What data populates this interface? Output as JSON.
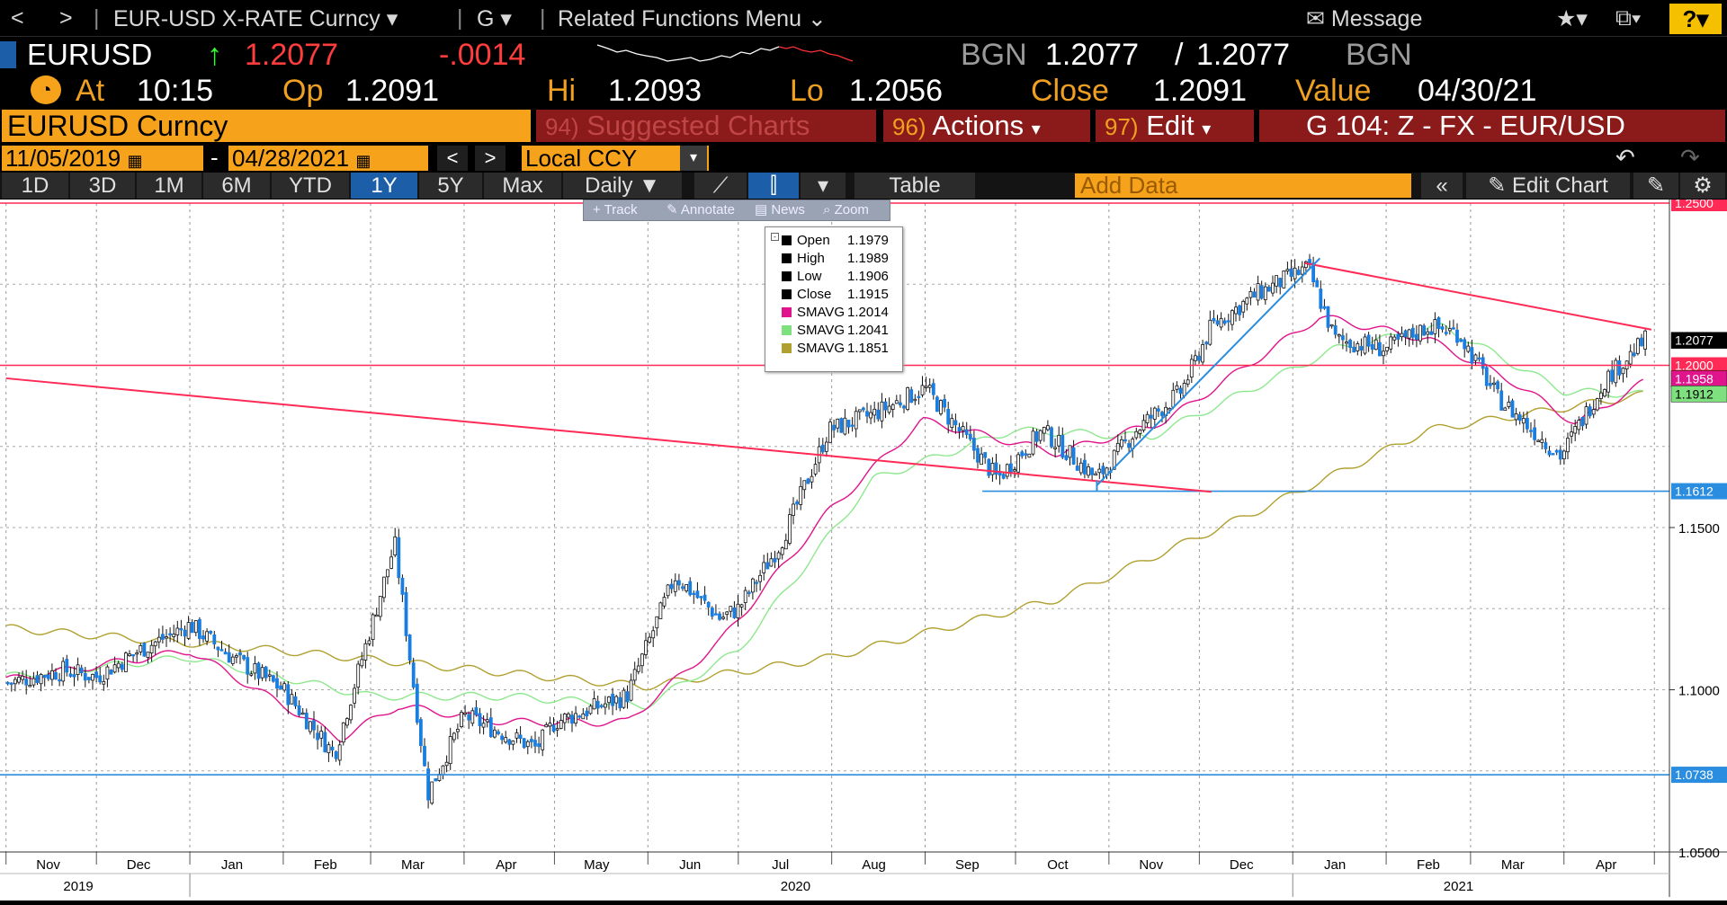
{
  "topbar": {
    "back": "<",
    "forward": ">",
    "security_menu": "EUR-USD X-RATE Curncy",
    "function_menu": "G",
    "related_menu": "Related Functions Menu",
    "message": "Message",
    "help": "?"
  },
  "quote": {
    "ticker": "EURUSD",
    "last": "1.2077",
    "change": "-.0014",
    "source_left": "BGN",
    "bid": "1.2077",
    "ask": "1.2077",
    "source_right": "BGN",
    "at_label": "At",
    "time": "10:15",
    "open_label": "Op",
    "open": "1.2091",
    "high_label": "Hi",
    "high": "1.2093",
    "low_label": "Lo",
    "low": "1.2056",
    "close_label": "Close",
    "close": "1.2091",
    "value_label": "Value",
    "value_date": "04/30/21"
  },
  "commands": {
    "security": "EURUSD Curncy",
    "suggested_num": "94)",
    "suggested": "Suggested Charts",
    "actions_num": "96)",
    "actions": "Actions",
    "edit_num": "97)",
    "edit": "Edit",
    "chart_id": "G 104: Z - FX - EUR/USD"
  },
  "dates": {
    "start": "11/05/2019",
    "dash": "-",
    "end": "04/28/2021",
    "currency": "Local CCY"
  },
  "range": {
    "buttons": [
      "1D",
      "3D",
      "1M",
      "6M",
      "YTD",
      "1Y",
      "5Y",
      "Max"
    ],
    "active": "1Y",
    "frequency": "Daily",
    "table": "Table",
    "add_data": "Add Data",
    "edit_chart": "Edit Chart"
  },
  "toolbar": {
    "track": "+ Track",
    "annotate": "Annotate",
    "news": "News",
    "zoom": "Zoom"
  },
  "legend": [
    {
      "name": "Open",
      "value": "1.1979",
      "color": "#000000"
    },
    {
      "name": "High",
      "value": "1.1989",
      "color": "#000000"
    },
    {
      "name": "Low",
      "value": "1.1906",
      "color": "#000000"
    },
    {
      "name": "Close",
      "value": "1.1915",
      "color": "#000000"
    },
    {
      "name": "SMAVG",
      "value": "1.2014",
      "color": "#e0148c"
    },
    {
      "name": "SMAVG",
      "value": "1.2041",
      "color": "#7fe07f"
    },
    {
      "name": "SMAVG",
      "value": "1.1851",
      "color": "#b0a030"
    }
  ],
  "chart_data": {
    "type": "candlestick",
    "ylim": [
      1.05,
      1.25
    ],
    "y_ticks": [
      "1.2500",
      "1.2000",
      "1.1500",
      "1.1000",
      "1.0500"
    ],
    "months": [
      "Nov",
      "Dec",
      "Jan",
      "Feb",
      "Mar",
      "Apr",
      "May",
      "Jun",
      "Jul",
      "Aug",
      "Sep",
      "Oct",
      "Nov",
      "Dec",
      "Jan",
      "Feb",
      "Mar",
      "Apr"
    ],
    "years": [
      "2019",
      "2020",
      "2021"
    ],
    "close_path": [
      [
        "2019-11",
        1.102
      ],
      [
        "2019-11-20",
        1.106
      ],
      [
        "2019-12",
        1.104
      ],
      [
        "2019-12-15",
        1.112
      ],
      [
        "2020-01",
        1.12
      ],
      [
        "2020-01-15",
        1.11
      ],
      [
        "2020-02",
        1.1
      ],
      [
        "2020-02-18",
        1.08
      ],
      [
        "2020-03-09",
        1.145
      ],
      [
        "2020-03-20",
        1.068
      ],
      [
        "2020-04",
        1.092
      ],
      [
        "2020-04-25",
        1.082
      ],
      [
        "2020-05",
        1.09
      ],
      [
        "2020-05-25",
        1.098
      ],
      [
        "2020-06-10",
        1.135
      ],
      [
        "2020-06-25",
        1.122
      ],
      [
        "2020-07",
        1.125
      ],
      [
        "2020-07-15",
        1.145
      ],
      [
        "2020-07-31",
        1.18
      ],
      [
        "2020-08-15",
        1.185
      ],
      [
        "2020-09",
        1.193
      ],
      [
        "2020-09-25",
        1.165
      ],
      [
        "2020-10-10",
        1.18
      ],
      [
        "2020-10-28",
        1.165
      ],
      [
        "2020-11-10",
        1.18
      ],
      [
        "2020-11-25",
        1.192
      ],
      [
        "2020-12-05",
        1.212
      ],
      [
        "2020-12-20",
        1.222
      ],
      [
        "2021-01-06",
        1.23
      ],
      [
        "2021-01-15",
        1.208
      ],
      [
        "2021-02-01",
        1.205
      ],
      [
        "2021-02-15",
        1.212
      ],
      [
        "2021-02-25",
        1.21
      ],
      [
        "2021-03-10",
        1.19
      ],
      [
        "2021-03-31",
        1.172
      ],
      [
        "2021-04-15",
        1.196
      ],
      [
        "2021-04-28",
        1.2077
      ]
    ],
    "sma_magenta": [
      [
        "2019-11",
        1.103
      ],
      [
        "2020-01",
        1.112
      ],
      [
        "2020-02-20",
        1.085
      ],
      [
        "2020-03-10",
        1.095
      ],
      [
        "2020-04-15",
        1.09
      ],
      [
        "2020-05-25",
        1.09
      ],
      [
        "2020-06-25",
        1.115
      ],
      [
        "2020-07-31",
        1.155
      ],
      [
        "2020-08-31",
        1.183
      ],
      [
        "2020-10-15",
        1.173
      ],
      [
        "2020-11-20",
        1.183
      ],
      [
        "2021-01-10",
        1.215
      ],
      [
        "2021-02-15",
        1.208
      ],
      [
        "2021-03-15",
        1.195
      ],
      [
        "2021-04-05",
        1.182
      ],
      [
        "2021-04-28",
        1.195
      ]
    ],
    "sma_green": [
      [
        "2019-11",
        1.104
      ],
      [
        "2020-01",
        1.11
      ],
      [
        "2020-03-01",
        1.098
      ],
      [
        "2020-04-15",
        1.098
      ],
      [
        "2020-05-31",
        1.095
      ],
      [
        "2020-07-01",
        1.112
      ],
      [
        "2020-08-15",
        1.165
      ],
      [
        "2020-09-30",
        1.18
      ],
      [
        "2020-11-15",
        1.178
      ],
      [
        "2021-01-15",
        1.205
      ],
      [
        "2021-02-20",
        1.212
      ],
      [
        "2021-04-01",
        1.192
      ],
      [
        "2021-04-28",
        1.191
      ]
    ],
    "sma_olive": [
      [
        "2019-11",
        1.119
      ],
      [
        "2020-02-01",
        1.112
      ],
      [
        "2020-05-31",
        1.101
      ],
      [
        "2020-08-01",
        1.11
      ],
      [
        "2020-10-15",
        1.128
      ],
      [
        "2020-12-20",
        1.155
      ],
      [
        "2021-02-15",
        1.18
      ],
      [
        "2021-04-28",
        1.191
      ]
    ],
    "trendlines": [
      {
        "name": "resistance-2021",
        "color": "#ff2a55",
        "points": [
          [
            "2021-01-05",
            1.2315
          ],
          [
            "2021-04-30",
            1.211
          ]
        ]
      },
      {
        "name": "descending-long",
        "color": "#ff2a55",
        "points": [
          [
            "2019-11",
            1.196
          ],
          [
            "2020-12-05",
            1.161
          ]
        ]
      },
      {
        "name": "support-uptrend",
        "color": "#2a8de0",
        "points": [
          [
            "2020-10-28",
            1.163
          ],
          [
            "2021-01-10",
            1.233
          ]
        ]
      }
    ],
    "hlines": [
      {
        "label": "1.2500",
        "value": 1.25,
        "color": "#ff2a55"
      },
      {
        "label": "1.2000",
        "value": 1.2,
        "color": "#ff2a55"
      },
      {
        "label": "1.1612",
        "value": 1.1612,
        "color": "#2a8de0"
      },
      {
        "label": "1.0738",
        "value": 1.0738,
        "color": "#2a8de0"
      }
    ],
    "price_tags": [
      {
        "label": "1.2077",
        "value": 1.2077,
        "bg": "#000000",
        "fg": "#ffffff"
      },
      {
        "label": "1.1958",
        "value": 1.1958,
        "bg": "#e0148c",
        "fg": "#ffffff"
      },
      {
        "label": "1.1912",
        "value": 1.1912,
        "bg": "#7fe07f",
        "fg": "#000000"
      }
    ]
  }
}
